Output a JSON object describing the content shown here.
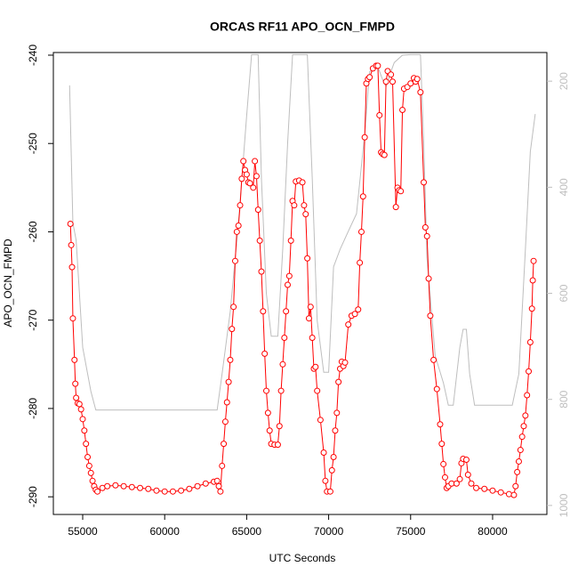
{
  "chart_data": {
    "type": "line",
    "title": "ORCAS RF11 APO_OCN_FMPD",
    "x_label": "UTC Seconds",
    "y_label": "APO_OCN_FMPD",
    "xlim": [
      53210,
      83310
    ],
    "ylim": [
      -292,
      -239.7
    ],
    "y2lim": [
      1017,
      146
    ],
    "xticks": [
      55000,
      60000,
      65000,
      70000,
      75000,
      80000
    ],
    "yticks": [
      -290,
      -280,
      -270,
      -260,
      -250,
      -240
    ],
    "y2ticks": [
      200,
      400,
      600,
      800,
      1000
    ],
    "series": [
      {
        "color": "#bebebe",
        "axis": "y2",
        "markers": false,
        "x": [
          54200,
          54400,
          54600,
          54800,
          55000,
          55500,
          55800,
          56000,
          63200,
          63500,
          64000,
          64500,
          65000,
          65300,
          65700,
          65900,
          66200,
          66500,
          66900,
          67200,
          67500,
          67800,
          68700,
          69000,
          69300,
          69700,
          70000,
          70300,
          70700,
          71200,
          71700,
          72200,
          72500,
          73000,
          73300,
          73500,
          73800,
          74000,
          74500,
          75000,
          75600,
          75800,
          76000,
          76500,
          77000,
          77300,
          77600,
          78000,
          78200,
          78400,
          78600,
          78900,
          81200,
          81600,
          82000,
          82300,
          82600
        ],
        "values": [
          208,
          467,
          500,
          600,
          702,
          785,
          820,
          820,
          820,
          752,
          634,
          467,
          265,
          150,
          150,
          383,
          600,
          681,
          681,
          517,
          316,
          150,
          150,
          383,
          651,
          749,
          749,
          550,
          517,
          483,
          450,
          299,
          182,
          173,
          198,
          210,
          182,
          165,
          151,
          150,
          150,
          316,
          534,
          718,
          769,
          811,
          811,
          702,
          668,
          668,
          752,
          811,
          811,
          752,
          517,
          333,
          262
        ]
      },
      {
        "color": "#ff0000",
        "axis": "y",
        "markers": true,
        "x": [
          54250,
          54300,
          54350,
          54400,
          54500,
          54550,
          54600,
          54700,
          54800,
          54900,
          55000,
          55100,
          55200,
          55300,
          55400,
          55500,
          55600,
          55700,
          55800,
          55900,
          56200,
          56500,
          57000,
          57500,
          58000,
          58500,
          59000,
          59500,
          60000,
          60500,
          61000,
          61500,
          62000,
          62500,
          63000,
          63200,
          63300,
          63400,
          63500,
          63600,
          63700,
          63800,
          63900,
          64000,
          64100,
          64200,
          64300,
          64400,
          64500,
          64600,
          64700,
          64800,
          64900,
          65000,
          65100,
          65200,
          65400,
          65500,
          65600,
          65700,
          65800,
          65900,
          66000,
          66100,
          66200,
          66300,
          66400,
          66500,
          66700,
          66900,
          67000,
          67100,
          67200,
          67300,
          67400,
          67500,
          67600,
          67700,
          67800,
          67900,
          68000,
          68200,
          68400,
          68500,
          68600,
          68700,
          68800,
          68900,
          69000,
          69100,
          69200,
          69300,
          69500,
          69700,
          69800,
          69900,
          70100,
          70200,
          70300,
          70400,
          70500,
          70600,
          70700,
          70800,
          70900,
          71000,
          71200,
          71400,
          71600,
          71800,
          71900,
          72000,
          72100,
          72200,
          72300,
          72400,
          72500,
          72700,
          72900,
          73000,
          73100,
          73200,
          73300,
          73400,
          73500,
          73600,
          73800,
          73900,
          74100,
          74200,
          74300,
          74400,
          74500,
          74600,
          74800,
          75000,
          75200,
          75300,
          75400,
          75600,
          75800,
          75900,
          76000,
          76100,
          76200,
          76400,
          76600,
          76800,
          76900,
          77000,
          77100,
          77200,
          77300,
          77500,
          77800,
          78000,
          78100,
          78200,
          78400,
          78500,
          78700,
          79000,
          79500,
          80000,
          80500,
          81000,
          81300,
          81400,
          81500,
          81600,
          81700,
          81800,
          81900,
          82000,
          82100,
          82200,
          82300,
          82400,
          82450,
          82500
        ],
        "values": [
          -259.1,
          -261.5,
          -264,
          -269.8,
          -274.5,
          -277.2,
          -278.8,
          -279.4,
          -279.5,
          -280.1,
          -281.2,
          -282.5,
          -284,
          -285.5,
          -286.5,
          -287.3,
          -288.2,
          -288.8,
          -289.2,
          -289.4,
          -289,
          -288.8,
          -288.7,
          -288.8,
          -288.9,
          -289,
          -289.1,
          -289.3,
          -289.4,
          -289.4,
          -289.3,
          -289.1,
          -288.8,
          -288.5,
          -288.3,
          -288.2,
          -288.8,
          -289.4,
          -286.5,
          -284,
          -281.5,
          -279.3,
          -277,
          -274.5,
          -271,
          -268.5,
          -263.3,
          -260,
          -259.3,
          -257,
          -254,
          -252,
          -253,
          -253.5,
          -254.4,
          -254.5,
          -255,
          -252,
          -253.7,
          -257.5,
          -261,
          -264.5,
          -269,
          -273.8,
          -278,
          -280.5,
          -282.5,
          -284,
          -284.1,
          -284.1,
          -282,
          -278,
          -275,
          -272,
          -269,
          -266,
          -265,
          -261,
          -256.5,
          -257,
          -254.3,
          -254.2,
          -254.4,
          -257,
          -258,
          -263,
          -269.8,
          -268.5,
          -272,
          -275.5,
          -275.3,
          -278,
          -281.3,
          -285,
          -288.2,
          -289.4,
          -289.4,
          -287,
          -285.5,
          -282.5,
          -280.5,
          -277,
          -275.5,
          -274.7,
          -275.2,
          -274.8,
          -270.5,
          -269.5,
          -269.3,
          -268.8,
          -263.5,
          -260,
          -256,
          -249.3,
          -243.2,
          -242.7,
          -242.5,
          -241.5,
          -241.2,
          -241.2,
          -246.8,
          -251,
          -251.2,
          -251.3,
          -243,
          -241.8,
          -242.2,
          -243,
          -257.2,
          -255,
          -255.3,
          -255.4,
          -246.2,
          -243.8,
          -243.6,
          -243.2,
          -242.6,
          -243,
          -242.7,
          -244.2,
          -254.4,
          -259.5,
          -260.5,
          -265.3,
          -269.5,
          -274.5,
          -277.8,
          -281.8,
          -284,
          -286.3,
          -287.8,
          -289,
          -288.8,
          -288.5,
          -288.5,
          -288,
          -286.2,
          -285.7,
          -285.8,
          -287.5,
          -288.5,
          -289,
          -289.1,
          -289.3,
          -289.5,
          -289.7,
          -289.8,
          -288.8,
          -287.2,
          -286,
          -284.7,
          -283.2,
          -282,
          -280.8,
          -278.5,
          -275.8,
          -272.5,
          -268.7,
          -265.5,
          -263.3
        ]
      }
    ]
  }
}
